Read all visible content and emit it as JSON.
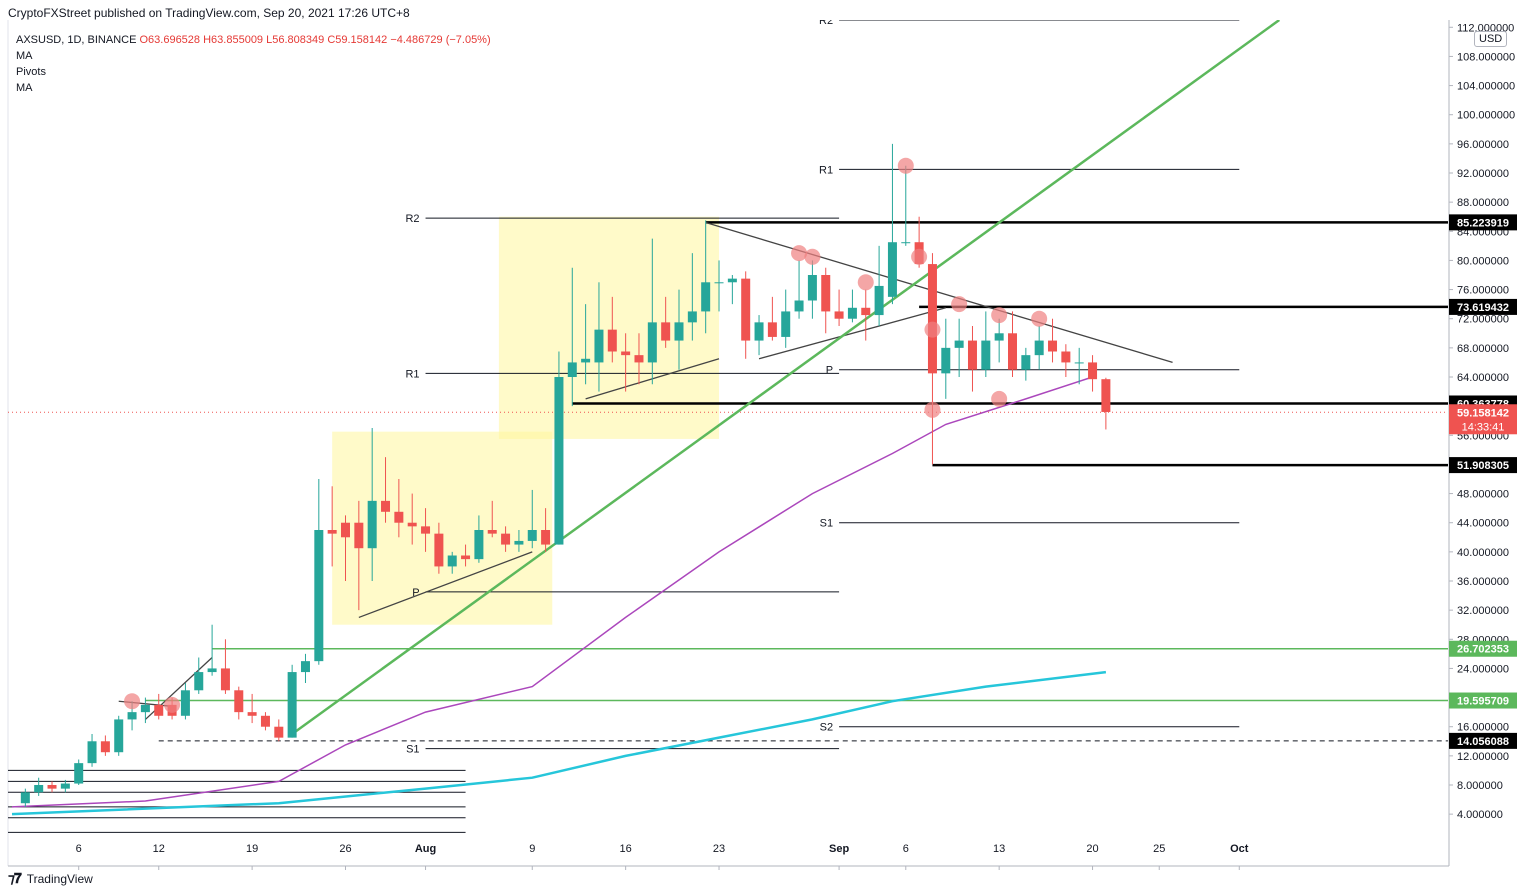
{
  "header": {
    "publisher_line": "CryptoFXStreet published on TradingView.com, Sep 20, 2021 17:26 UTC+8"
  },
  "legend": {
    "symbol": "AXSUSD, 1D, BINANCE",
    "open": "O63.696528",
    "high": "H63.855009",
    "low": "L56.808349",
    "close": "C59.158142",
    "change": "−4.486729 (−7.05%)",
    "indicators": [
      "MA",
      "Pivots",
      "MA"
    ]
  },
  "footer": {
    "brand": "TradingView"
  },
  "currency_badge": "USD",
  "colors": {
    "up": "#26a69a",
    "down": "#ef5350",
    "ma50": "#ab47bc",
    "ma200": "#26c6da",
    "trend_green": "#5cb85c",
    "zone": "#fff59d",
    "touch": "#f08080"
  },
  "chart_data": {
    "type": "candlestick",
    "y_axis": {
      "range": [
        1.0,
        113.0
      ],
      "ticks": [
        "4.000000",
        "8.000000",
        "12.000000",
        "16.000000",
        "20.000000",
        "24.000000",
        "28.000000",
        "32.000000",
        "36.000000",
        "40.000000",
        "44.000000",
        "48.000000",
        "52.000000",
        "56.000000",
        "60.000000",
        "64.000000",
        "68.000000",
        "72.000000",
        "76.000000",
        "80.000000",
        "84.000000",
        "88.000000",
        "92.000000",
        "96.000000",
        "100.000000",
        "104.000000",
        "108.000000",
        "112.000000"
      ]
    },
    "x_axis": {
      "ticks": [
        {
          "label": "6",
          "day": 5
        },
        {
          "label": "12",
          "day": 11
        },
        {
          "label": "19",
          "day": 18
        },
        {
          "label": "26",
          "day": 25
        },
        {
          "label": "Aug",
          "day": 31
        },
        {
          "label": "9",
          "day": 39
        },
        {
          "label": "16",
          "day": 46
        },
        {
          "label": "23",
          "day": 53
        },
        {
          "label": "Sep",
          "day": 62
        },
        {
          "label": "6",
          "day": 67
        },
        {
          "label": "13",
          "day": 74
        },
        {
          "label": "20",
          "day": 81
        },
        {
          "label": "25",
          "day": 86
        },
        {
          "label": "Oct",
          "day": 92
        }
      ]
    },
    "candles": [
      {
        "day": 1,
        "o": 5.5,
        "h": 7.5,
        "l": 5.0,
        "c": 7.0
      },
      {
        "day": 2,
        "o": 7.0,
        "h": 9.0,
        "l": 6.5,
        "c": 8.0
      },
      {
        "day": 3,
        "o": 8.0,
        "h": 8.5,
        "l": 7.0,
        "c": 7.5
      },
      {
        "day": 4,
        "o": 7.5,
        "h": 8.7,
        "l": 7.0,
        "c": 8.2
      },
      {
        "day": 5,
        "o": 8.2,
        "h": 11.5,
        "l": 8.0,
        "c": 11.0
      },
      {
        "day": 6,
        "o": 11.0,
        "h": 15.0,
        "l": 10.5,
        "c": 14.0
      },
      {
        "day": 7,
        "o": 14.0,
        "h": 14.8,
        "l": 12.0,
        "c": 12.5
      },
      {
        "day": 8,
        "o": 12.5,
        "h": 17.5,
        "l": 12.0,
        "c": 17.0
      },
      {
        "day": 9,
        "o": 17.0,
        "h": 19.5,
        "l": 15.5,
        "c": 18.0
      },
      {
        "day": 10,
        "o": 18.0,
        "h": 20.0,
        "l": 16.5,
        "c": 19.0
      },
      {
        "day": 11,
        "o": 19.0,
        "h": 20.5,
        "l": 17.0,
        "c": 17.5
      },
      {
        "day": 12,
        "o": 19.0,
        "h": 20.0,
        "l": 17.0,
        "c": 17.5
      },
      {
        "day": 13,
        "o": 17.5,
        "h": 22.0,
        "l": 17.0,
        "c": 21.0
      },
      {
        "day": 14,
        "o": 21.0,
        "h": 25.5,
        "l": 20.5,
        "c": 23.5
      },
      {
        "day": 15,
        "o": 23.5,
        "h": 30.0,
        "l": 23.0,
        "c": 24.0
      },
      {
        "day": 16,
        "o": 24.0,
        "h": 28.0,
        "l": 20.5,
        "c": 21.0
      },
      {
        "day": 17,
        "o": 21.0,
        "h": 21.5,
        "l": 17.0,
        "c": 18.0
      },
      {
        "day": 18,
        "o": 18.0,
        "h": 20.5,
        "l": 16.5,
        "c": 17.5
      },
      {
        "day": 19,
        "o": 17.5,
        "h": 18.0,
        "l": 15.5,
        "c": 16.0
      },
      {
        "day": 20,
        "o": 16.0,
        "h": 17.0,
        "l": 14.0,
        "c": 14.5
      },
      {
        "day": 21,
        "o": 14.5,
        "h": 24.5,
        "l": 14.5,
        "c": 23.5
      },
      {
        "day": 22,
        "o": 23.5,
        "h": 26.0,
        "l": 22.0,
        "c": 25.0
      },
      {
        "day": 23,
        "o": 25.0,
        "h": 50.0,
        "l": 24.5,
        "c": 43.0
      },
      {
        "day": 24,
        "o": 43.0,
        "h": 49.0,
        "l": 38.0,
        "c": 42.5
      },
      {
        "day": 25,
        "o": 44.0,
        "h": 45.0,
        "l": 36.0,
        "c": 42.0
      },
      {
        "day": 26,
        "o": 44.0,
        "h": 47.0,
        "l": 32.0,
        "c": 40.5
      },
      {
        "day": 27,
        "o": 40.5,
        "h": 57.0,
        "l": 36.0,
        "c": 47.0
      },
      {
        "day": 28,
        "o": 47.0,
        "h": 53.0,
        "l": 44.0,
        "c": 45.5
      },
      {
        "day": 29,
        "o": 45.5,
        "h": 50.0,
        "l": 42.0,
        "c": 44.0
      },
      {
        "day": 30,
        "o": 44.0,
        "h": 48.0,
        "l": 41.0,
        "c": 43.5
      },
      {
        "day": 31,
        "o": 43.5,
        "h": 46.0,
        "l": 40.0,
        "c": 42.5
      },
      {
        "day": 32,
        "o": 42.5,
        "h": 44.0,
        "l": 37.0,
        "c": 38.0
      },
      {
        "day": 33,
        "o": 38.0,
        "h": 40.0,
        "l": 37.0,
        "c": 39.5
      },
      {
        "day": 34,
        "o": 39.5,
        "h": 41.0,
        "l": 38.0,
        "c": 39.0
      },
      {
        "day": 35,
        "o": 39.0,
        "h": 45.0,
        "l": 38.5,
        "c": 43.0
      },
      {
        "day": 36,
        "o": 43.0,
        "h": 47.0,
        "l": 42.0,
        "c": 42.5
      },
      {
        "day": 37,
        "o": 42.5,
        "h": 43.5,
        "l": 40.0,
        "c": 41.0
      },
      {
        "day": 38,
        "o": 41.0,
        "h": 43.0,
        "l": 40.0,
        "c": 41.5
      },
      {
        "day": 39,
        "o": 41.5,
        "h": 48.5,
        "l": 40.5,
        "c": 43.0
      },
      {
        "day": 40,
        "o": 43.0,
        "h": 46.0,
        "l": 40.0,
        "c": 41.0
      },
      {
        "day": 41,
        "o": 41.0,
        "h": 67.5,
        "l": 41.0,
        "c": 64.0
      },
      {
        "day": 42,
        "o": 64.0,
        "h": 79.0,
        "l": 60.0,
        "c": 66.0
      },
      {
        "day": 43,
        "o": 66.0,
        "h": 74.0,
        "l": 63.0,
        "c": 66.5
      },
      {
        "day": 44,
        "o": 66.0,
        "h": 77.0,
        "l": 62.0,
        "c": 70.5
      },
      {
        "day": 45,
        "o": 70.5,
        "h": 75.0,
        "l": 66.0,
        "c": 67.5
      },
      {
        "day": 46,
        "o": 67.5,
        "h": 70.0,
        "l": 62.0,
        "c": 67.0
      },
      {
        "day": 47,
        "o": 67.0,
        "h": 70.0,
        "l": 63.0,
        "c": 66.0
      },
      {
        "day": 48,
        "o": 66.0,
        "h": 83.0,
        "l": 63.0,
        "c": 71.5
      },
      {
        "day": 49,
        "o": 71.5,
        "h": 75.0,
        "l": 68.0,
        "c": 69.0
      },
      {
        "day": 50,
        "o": 69.0,
        "h": 76.0,
        "l": 65.0,
        "c": 71.5
      },
      {
        "day": 51,
        "o": 71.5,
        "h": 81.0,
        "l": 69.0,
        "c": 73.0
      },
      {
        "day": 52,
        "o": 73.0,
        "h": 85.5,
        "l": 70.0,
        "c": 77.0
      },
      {
        "day": 53,
        "o": 77.0,
        "h": 80.0,
        "l": 73.0,
        "c": 77.0
      },
      {
        "day": 54,
        "o": 77.0,
        "h": 78.0,
        "l": 74.0,
        "c": 77.5
      },
      {
        "day": 55,
        "o": 77.5,
        "h": 78.5,
        "l": 66.5,
        "c": 69.0
      },
      {
        "day": 56,
        "o": 69.0,
        "h": 72.5,
        "l": 67.0,
        "c": 71.5
      },
      {
        "day": 57,
        "o": 71.5,
        "h": 75.0,
        "l": 69.0,
        "c": 69.5
      },
      {
        "day": 58,
        "o": 69.5,
        "h": 76.0,
        "l": 68.0,
        "c": 73.0
      },
      {
        "day": 59,
        "o": 73.0,
        "h": 80.0,
        "l": 72.0,
        "c": 74.5
      },
      {
        "day": 60,
        "o": 74.5,
        "h": 80.0,
        "l": 72.0,
        "c": 78.0
      },
      {
        "day": 61,
        "o": 78.0,
        "h": 79.0,
        "l": 70.0,
        "c": 73.0
      },
      {
        "day": 62,
        "o": 73.0,
        "h": 76.0,
        "l": 71.0,
        "c": 72.0
      },
      {
        "day": 63,
        "o": 72.0,
        "h": 76.0,
        "l": 71.5,
        "c": 73.5
      },
      {
        "day": 64,
        "o": 73.5,
        "h": 76.0,
        "l": 69.0,
        "c": 72.5
      },
      {
        "day": 65,
        "o": 72.5,
        "h": 82.0,
        "l": 71.0,
        "c": 76.5
      },
      {
        "day": 66,
        "o": 75.0,
        "h": 96.0,
        "l": 74.0,
        "c": 82.5
      },
      {
        "day": 67,
        "o": 82.5,
        "h": 93.0,
        "l": 82.0,
        "c": 82.5
      },
      {
        "day": 68,
        "o": 82.5,
        "h": 86.0,
        "l": 79.0,
        "c": 79.5
      },
      {
        "day": 69,
        "o": 79.5,
        "h": 81.0,
        "l": 52.0,
        "c": 64.5
      },
      {
        "day": 70,
        "o": 64.5,
        "h": 72.0,
        "l": 61.0,
        "c": 68.0
      },
      {
        "day": 71,
        "o": 68.0,
        "h": 72.0,
        "l": 64.0,
        "c": 69.0
      },
      {
        "day": 72,
        "o": 69.0,
        "h": 71.0,
        "l": 62.0,
        "c": 65.0
      },
      {
        "day": 73,
        "o": 65.0,
        "h": 73.0,
        "l": 64.0,
        "c": 69.0
      },
      {
        "day": 74,
        "o": 69.0,
        "h": 72.0,
        "l": 66.0,
        "c": 70.0
      },
      {
        "day": 75,
        "o": 70.0,
        "h": 73.0,
        "l": 64.0,
        "c": 65.0
      },
      {
        "day": 76,
        "o": 65.0,
        "h": 68.0,
        "l": 63.5,
        "c": 67.0
      },
      {
        "day": 77,
        "o": 67.0,
        "h": 71.0,
        "l": 65.0,
        "c": 69.0
      },
      {
        "day": 78,
        "o": 69.0,
        "h": 72.0,
        "l": 66.0,
        "c": 67.5
      },
      {
        "day": 79,
        "o": 67.5,
        "h": 68.5,
        "l": 64.0,
        "c": 66.0
      },
      {
        "day": 80,
        "o": 66.0,
        "h": 68.0,
        "l": 63.0,
        "c": 66.0
      },
      {
        "day": 81,
        "o": 66.0,
        "h": 67.0,
        "l": 62.0,
        "c": 63.7
      },
      {
        "day": 82,
        "o": 63.7,
        "h": 63.9,
        "l": 56.8,
        "c": 59.2
      }
    ],
    "horizontal_levels": [
      {
        "label": "85.223919",
        "value": 85.223919,
        "style": "thick",
        "from_day": 52
      },
      {
        "label": "73.619432",
        "value": 73.619432,
        "style": "thick",
        "from_day": 68
      },
      {
        "label": "60.363778",
        "value": 60.363778,
        "style": "thick",
        "from_day": 42
      },
      {
        "label": "51.908305",
        "value": 51.908305,
        "style": "thick",
        "from_day": 69
      },
      {
        "label": "26.702353",
        "value": 26.702353,
        "style": "green",
        "from_day": 15
      },
      {
        "label": "19.595709",
        "value": 19.595709,
        "style": "green",
        "from_day": 10
      },
      {
        "label": "14.056088",
        "value": 14.056088,
        "style": "dashed",
        "from_day": 11
      }
    ],
    "current_price": {
      "label": "59.158142",
      "countdown": "14:33:41",
      "value": 59.158142
    },
    "pivots": [
      {
        "name": "R2",
        "value": 85.8,
        "from_day": 31,
        "to_day": 62
      },
      {
        "name": "R1",
        "value": 64.5,
        "from_day": 31,
        "to_day": 62
      },
      {
        "name": "P",
        "value": 34.5,
        "from_day": 31,
        "to_day": 62
      },
      {
        "name": "S1",
        "value": 13.0,
        "from_day": 31,
        "to_day": 62
      },
      {
        "name": "R2",
        "value": 113.0,
        "from_day": 62,
        "to_day": 92
      },
      {
        "name": "R1",
        "value": 92.5,
        "from_day": 62,
        "to_day": 92
      },
      {
        "name": "P",
        "value": 65.0,
        "from_day": 62,
        "to_day": 92
      },
      {
        "name": "S1",
        "value": 44.0,
        "from_day": 62,
        "to_day": 92
      },
      {
        "name": "S2",
        "value": 16.0,
        "from_day": 62,
        "to_day": 92
      }
    ],
    "old_pivot_lines": [
      10.0,
      8.5,
      7.0,
      5.0,
      3.5,
      1.5
    ],
    "ma50": [
      [
        0,
        5.0
      ],
      [
        10,
        5.8
      ],
      [
        20,
        8.5
      ],
      [
        25,
        13.5
      ],
      [
        31,
        18.0
      ],
      [
        39,
        21.5
      ],
      [
        46,
        31.0
      ],
      [
        53,
        40.0
      ],
      [
        60,
        48.0
      ],
      [
        66,
        53.5
      ],
      [
        70,
        57.5
      ],
      [
        76,
        61.0
      ],
      [
        81,
        64.0
      ]
    ],
    "ma200": [
      [
        0,
        4.0
      ],
      [
        20,
        5.5
      ],
      [
        31,
        7.5
      ],
      [
        39,
        9.0
      ],
      [
        46,
        12.0
      ],
      [
        53,
        14.5
      ],
      [
        60,
        17.0
      ],
      [
        66,
        19.5
      ],
      [
        73,
        21.5
      ],
      [
        82,
        23.5
      ]
    ],
    "trendline_green": [
      [
        21,
        15.0
      ],
      [
        95,
        113.0
      ]
    ],
    "zones": [
      {
        "from_day": 24,
        "to_day": 40.5,
        "low": 30.0,
        "high": 56.5
      },
      {
        "from_day": 36.5,
        "to_day": 53,
        "low": 55.5,
        "high": 86.0
      }
    ],
    "touch_points": [
      [
        9,
        19.5
      ],
      [
        12,
        19.0
      ],
      [
        59,
        81.0
      ],
      [
        60,
        80.5
      ],
      [
        64,
        77.0
      ],
      [
        67,
        93.0
      ],
      [
        68,
        80.5
      ],
      [
        69,
        70.5
      ],
      [
        69,
        59.5
      ],
      [
        71,
        74.0
      ],
      [
        74,
        72.5
      ],
      [
        74,
        61.0
      ],
      [
        77,
        72.0
      ]
    ]
  }
}
